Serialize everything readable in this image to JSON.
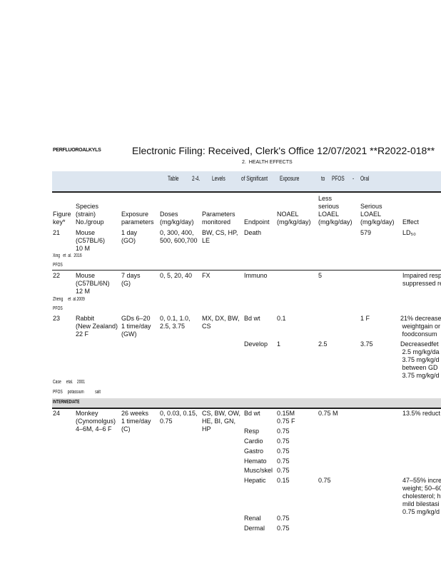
{
  "header": {
    "running_head": "PERFLUOROALKYLS",
    "filing_stamp": "Electronic Filing: Received, Clerk's Office 12/07/2021 **R2022-018**",
    "section": "2.  HEALTH EFFECTS"
  },
  "table": {
    "title_words": [
      "Table",
      "2-4.",
      "Levels",
      "of Significant",
      "Exposure",
      "to",
      "PFOS",
      "-",
      "Oral"
    ],
    "columns": [
      "Figure\nkey*",
      "Species\n(strain)\nNo./group",
      "Exposure\nparameters",
      "Doses\n(mg/kg/day)",
      "Parameters\nmonitored",
      "Endpoint",
      "NOAEL\n(mg/kg/day)",
      "Less\nserious\nLOAEL\n(mg/kg/day)",
      "Serious\nLOAEL\n(mg/kg/day)",
      "Effect"
    ],
    "rows": [
      {
        "key": "21",
        "species": "Mouse\n(C57BL/6)\n10 M",
        "exposure": "1 day\n(GO)",
        "doses": "0, 300, 400,\n500, 600,700",
        "params": "BW, CS, HP,\nLE",
        "endpoint": "Death",
        "noael": "",
        "less": "",
        "serious": "579",
        "effect": "LD₅₀",
        "citation": "Xing   et  al.  2016",
        "chemical": "PFOS"
      },
      {
        "key": "22",
        "species": "Mouse\n(C57BL/6N)\n12 M",
        "exposure": "7 days\n(G)",
        "doses": "0, 5, 20, 40",
        "params": "FX",
        "endpoint": "Immuno",
        "noael": "",
        "less": "5",
        "serious": "",
        "effect": "Impaired resp\nsuppressed re",
        "citation": "Zheng     et  al.2009",
        "chemical": "PFOS"
      },
      {
        "key": "23",
        "species": "Rabbit\n(New Zealand)\n22 F",
        "exposure": "GDs 6–20\n1 time/day\n(GW)",
        "doses": "0, 0.1, 1.0,\n2.5, 3.75",
        "params": "MX, DX, BW,\nCS",
        "endpoint": "Bd wt",
        "noael": "0.1",
        "less": "",
        "serious": "1 F",
        "effect": "21% decrease\n weightgain or\n foodconsum",
        "endpoint2": "Develop",
        "noael2": "1",
        "less2": "2.5",
        "serious2": "3.75",
        "effect2": "Decreasedfet\n 2.5 mg/kg/da\n 3.75 mg/kg/d\n between GD\n 3.75 mg/kg/d",
        "citation": "Case     etal.    2001",
        "chemical": "PFOS     potassium           salt"
      }
    ],
    "section_label": "INTERMEDIATE",
    "row24": {
      "key": "24",
      "species": "Monkey\n(Cynomolgus)\n4–6M, 4–6 F",
      "exposure": "26 weeks\n1 time/day\n(C)",
      "doses": "0, 0.03, 0.15,\n0.75",
      "params": "CS, BW, OW,\nHE, BI, GN,\nHP",
      "endpoints": [
        {
          "endpoint": "Bd wt",
          "noael": "0.15M\n0.75 F",
          "less": "0.75 M",
          "effect": "13.5% reduct"
        },
        {
          "endpoint": "Resp",
          "noael": "0.75"
        },
        {
          "endpoint": "Cardio",
          "noael": "0.75"
        },
        {
          "endpoint": "Gastro",
          "noael": "0.75"
        },
        {
          "endpoint": "Hemato",
          "noael": "0.75"
        },
        {
          "endpoint": "Musc/skel",
          "noael": "0.75"
        },
        {
          "endpoint": "Hepatic",
          "noael": "0.15",
          "less": "0.75",
          "effect": "47–55% incre\nweight; 50–60\ncholesterol; h\nmild bilestasi\n0.75 mg/kg/d"
        },
        {
          "endpoint": "Renal",
          "noael": "0.75"
        },
        {
          "endpoint": "Dermal",
          "noael": "0.75"
        }
      ]
    }
  }
}
